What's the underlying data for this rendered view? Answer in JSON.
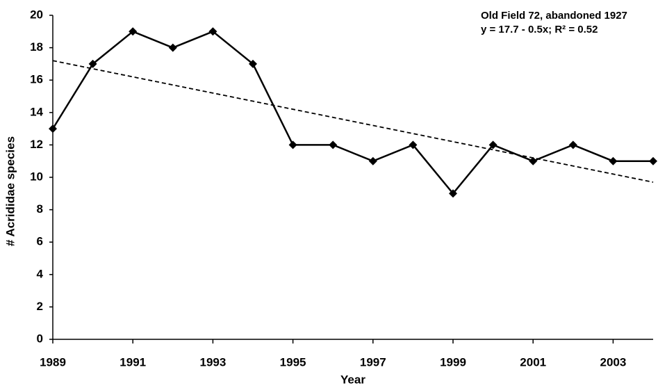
{
  "chart_data": {
    "type": "line",
    "x_label": "Year",
    "y_label": "# Acrididae species",
    "annotations": [
      "Old Field 72, abandoned 1927",
      "y = 17.7 - 0.5x; R² = 0.52"
    ],
    "x": [
      1989,
      1990,
      1991,
      1992,
      1993,
      1994,
      1995,
      1996,
      1997,
      1998,
      1999,
      2000,
      2001,
      2002,
      2003,
      2004
    ],
    "series": [
      {
        "color": "#000000",
        "values": [
          13,
          17,
          19,
          18,
          19,
          17,
          12,
          12,
          11,
          12,
          9,
          12,
          11,
          12,
          11,
          11
        ]
      }
    ],
    "trendline": {
      "x": [
        1989,
        2004
      ],
      "values": [
        17.2,
        9.7
      ]
    },
    "xlim": [
      1989,
      2004
    ],
    "xticks": [
      1989,
      1991,
      1993,
      1995,
      1997,
      1999,
      2001,
      2003
    ],
    "ylim": [
      0,
      20
    ],
    "yticks": [
      0,
      2,
      4,
      6,
      8,
      10,
      12,
      14,
      16,
      18,
      20
    ],
    "grid": false
  }
}
